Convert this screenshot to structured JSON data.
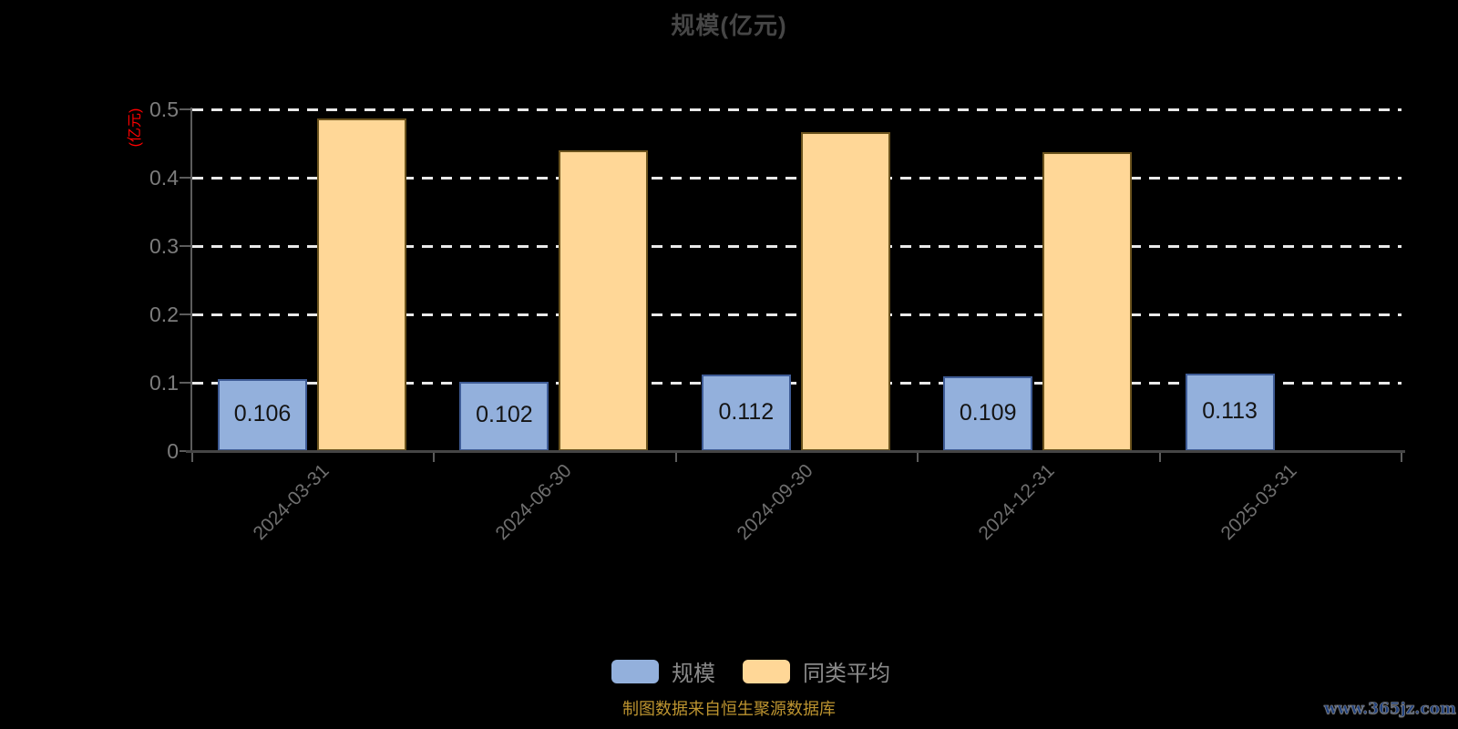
{
  "chart_data": {
    "type": "bar",
    "title": "规模(亿元)",
    "ylabel": "(亿元)",
    "categories": [
      "2024-03-31",
      "2024-06-30",
      "2024-09-30",
      "2024-12-31",
      "2025-03-31"
    ],
    "series": [
      {
        "name": "规模",
        "slug": "scale",
        "color": "#93B0DC",
        "border_color": "#3F5C96",
        "values": [
          0.106,
          0.102,
          0.112,
          0.109,
          0.113
        ],
        "value_labels": [
          "0.106",
          "0.102",
          "0.112",
          "0.109",
          "0.113"
        ],
        "show_value_labels": true
      },
      {
        "name": "同类平均",
        "slug": "peer-average",
        "color": "#FFD797",
        "border_color": "#6B531D",
        "values": [
          0.487,
          0.44,
          0.467,
          0.437,
          null
        ],
        "value_labels": [],
        "show_value_labels": false
      }
    ],
    "ylim": [
      0,
      0.5
    ],
    "ytick_labels": [
      "0",
      "0.1",
      "0.2",
      "0.3",
      "0.4",
      "0.5"
    ],
    "grid": "horizontal-dashed",
    "legend_position": "bottom"
  },
  "colors": {
    "background": "#000000",
    "title": "#464646",
    "unit_label": "#FF0000",
    "y_tick_label": "#7C7C7C",
    "x_category_label": "#6F6F6F",
    "gridline": "#E9E9E9",
    "axis_line_x": "#454545",
    "axis_line_y": "#5C5C5C",
    "bar_value_label": "#141414",
    "legend_label": "#8A8A8A",
    "source_note": "#BD9430",
    "watermark": "#1E3F7D"
  },
  "footer": {
    "source_text": "制图数据来自恒生聚源数据库",
    "watermark_text": "www.365jz.com"
  }
}
